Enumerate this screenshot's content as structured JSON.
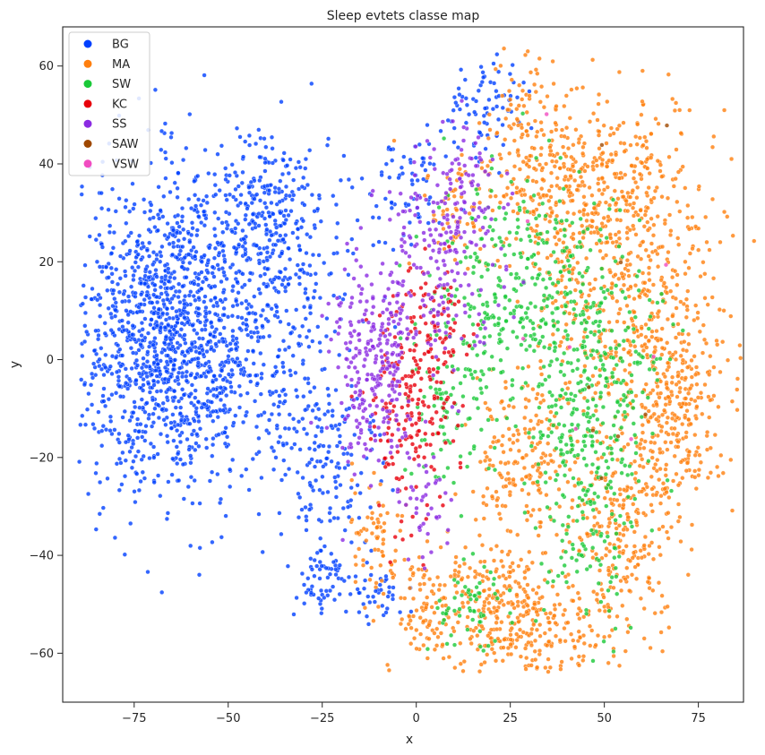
{
  "chart_data": {
    "type": "scatter",
    "title": "Sleep evtets classe map",
    "xlabel": "x",
    "ylabel": "y",
    "xlim": [
      -94,
      87
    ],
    "ylim": [
      -70,
      68
    ],
    "xticks": [
      -75,
      -50,
      -25,
      0,
      25,
      50,
      75
    ],
    "yticks": [
      -60,
      -40,
      -20,
      0,
      20,
      40,
      60
    ],
    "xtick_labels": [
      "−75",
      "−50",
      "−25",
      "0",
      "25",
      "50",
      "75"
    ],
    "ytick_labels": [
      "−60",
      "−40",
      "−20",
      "0",
      "20",
      "40",
      "60"
    ],
    "grid": false,
    "legend_position": "top-left",
    "series": [
      {
        "name": "BG",
        "color": "#0040ff",
        "clusters": [
          [
            -65,
            5,
            13,
            16,
            1400
          ],
          [
            -38,
            18,
            12,
            14,
            300
          ],
          [
            -25,
            -20,
            8,
            12,
            180
          ],
          [
            -25,
            -45,
            4,
            4,
            60
          ],
          [
            -12,
            -48,
            4,
            3,
            40
          ],
          [
            -3,
            35,
            6,
            5,
            60
          ],
          [
            15,
            50,
            5,
            6,
            50
          ],
          [
            22,
            54,
            4,
            3,
            30
          ],
          [
            -40,
            30,
            8,
            8,
            150
          ]
        ]
      },
      {
        "name": "MA",
        "color": "#ff7f0e",
        "clusters": [
          [
            60,
            10,
            10,
            20,
            500
          ],
          [
            45,
            35,
            12,
            8,
            350
          ],
          [
            28,
            -20,
            6,
            8,
            180
          ],
          [
            55,
            -35,
            8,
            10,
            250
          ],
          [
            30,
            -55,
            10,
            5,
            250
          ],
          [
            5,
            -50,
            8,
            5,
            130
          ],
          [
            -12,
            -35,
            4,
            5,
            60
          ],
          [
            70,
            -10,
            6,
            10,
            200
          ],
          [
            30,
            45,
            6,
            8,
            120
          ],
          [
            22,
            -45,
            6,
            4,
            80
          ],
          [
            40,
            15,
            5,
            10,
            80
          ],
          [
            12,
            30,
            6,
            6,
            60
          ]
        ]
      },
      {
        "name": "SW",
        "color": "#1ac938",
        "clusters": [
          [
            30,
            10,
            12,
            14,
            400
          ],
          [
            50,
            -5,
            8,
            12,
            200
          ],
          [
            45,
            -30,
            6,
            12,
            150
          ],
          [
            15,
            -50,
            6,
            5,
            60
          ],
          [
            8,
            -10,
            5,
            10,
            80
          ]
        ]
      },
      {
        "name": "KC",
        "color": "#e8000b",
        "clusters": [
          [
            -2,
            -10,
            6,
            12,
            180
          ],
          [
            5,
            5,
            4,
            8,
            70
          ]
        ]
      },
      {
        "name": "SS",
        "color": "#8b2be2",
        "clusters": [
          [
            -12,
            -5,
            6,
            10,
            180
          ],
          [
            5,
            20,
            8,
            12,
            200
          ],
          [
            15,
            35,
            5,
            6,
            60
          ],
          [
            -10,
            5,
            5,
            6,
            80
          ],
          [
            2,
            -30,
            4,
            6,
            40
          ]
        ]
      },
      {
        "name": "SAW",
        "color": "#9f4800",
        "clusters": [
          [
            60,
            0,
            10,
            20,
            8
          ]
        ]
      },
      {
        "name": "VSW",
        "color": "#f14cc1",
        "clusters": [
          [
            40,
            0,
            15,
            20,
            8
          ]
        ]
      }
    ]
  }
}
